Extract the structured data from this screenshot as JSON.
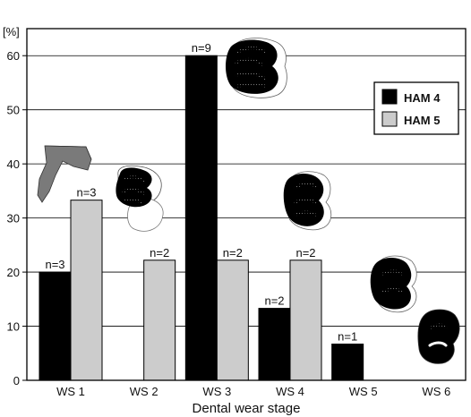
{
  "chart_data": {
    "type": "bar",
    "title": "",
    "xlabel": "Dental wear stage",
    "ylabel": "[%]",
    "ylim": [
      0,
      65
    ],
    "yticks": [
      0,
      10,
      20,
      30,
      40,
      50,
      60
    ],
    "ytick_labels": [
      "0",
      "10",
      "20",
      "30",
      "40",
      "50",
      "60"
    ],
    "grid": "horizontal",
    "legend_position": "right",
    "categories": [
      "WS 1",
      "WS 2",
      "WS 3",
      "WS 4",
      "WS 5",
      "WS 6"
    ],
    "series": [
      {
        "name": "HAM 4",
        "color": "#000000",
        "values": [
          20,
          0,
          60,
          13.3,
          6.7,
          0
        ],
        "labels": [
          "n=3",
          "",
          "n=9",
          "n=2",
          "n=1",
          ""
        ]
      },
      {
        "name": "HAM 5",
        "color": "#cccccc",
        "values": [
          33.3,
          22.2,
          22.2,
          22.2,
          0,
          0
        ],
        "labels": [
          "n=3",
          "n=2",
          "n=2",
          "n=2",
          "",
          ""
        ]
      }
    ]
  }
}
